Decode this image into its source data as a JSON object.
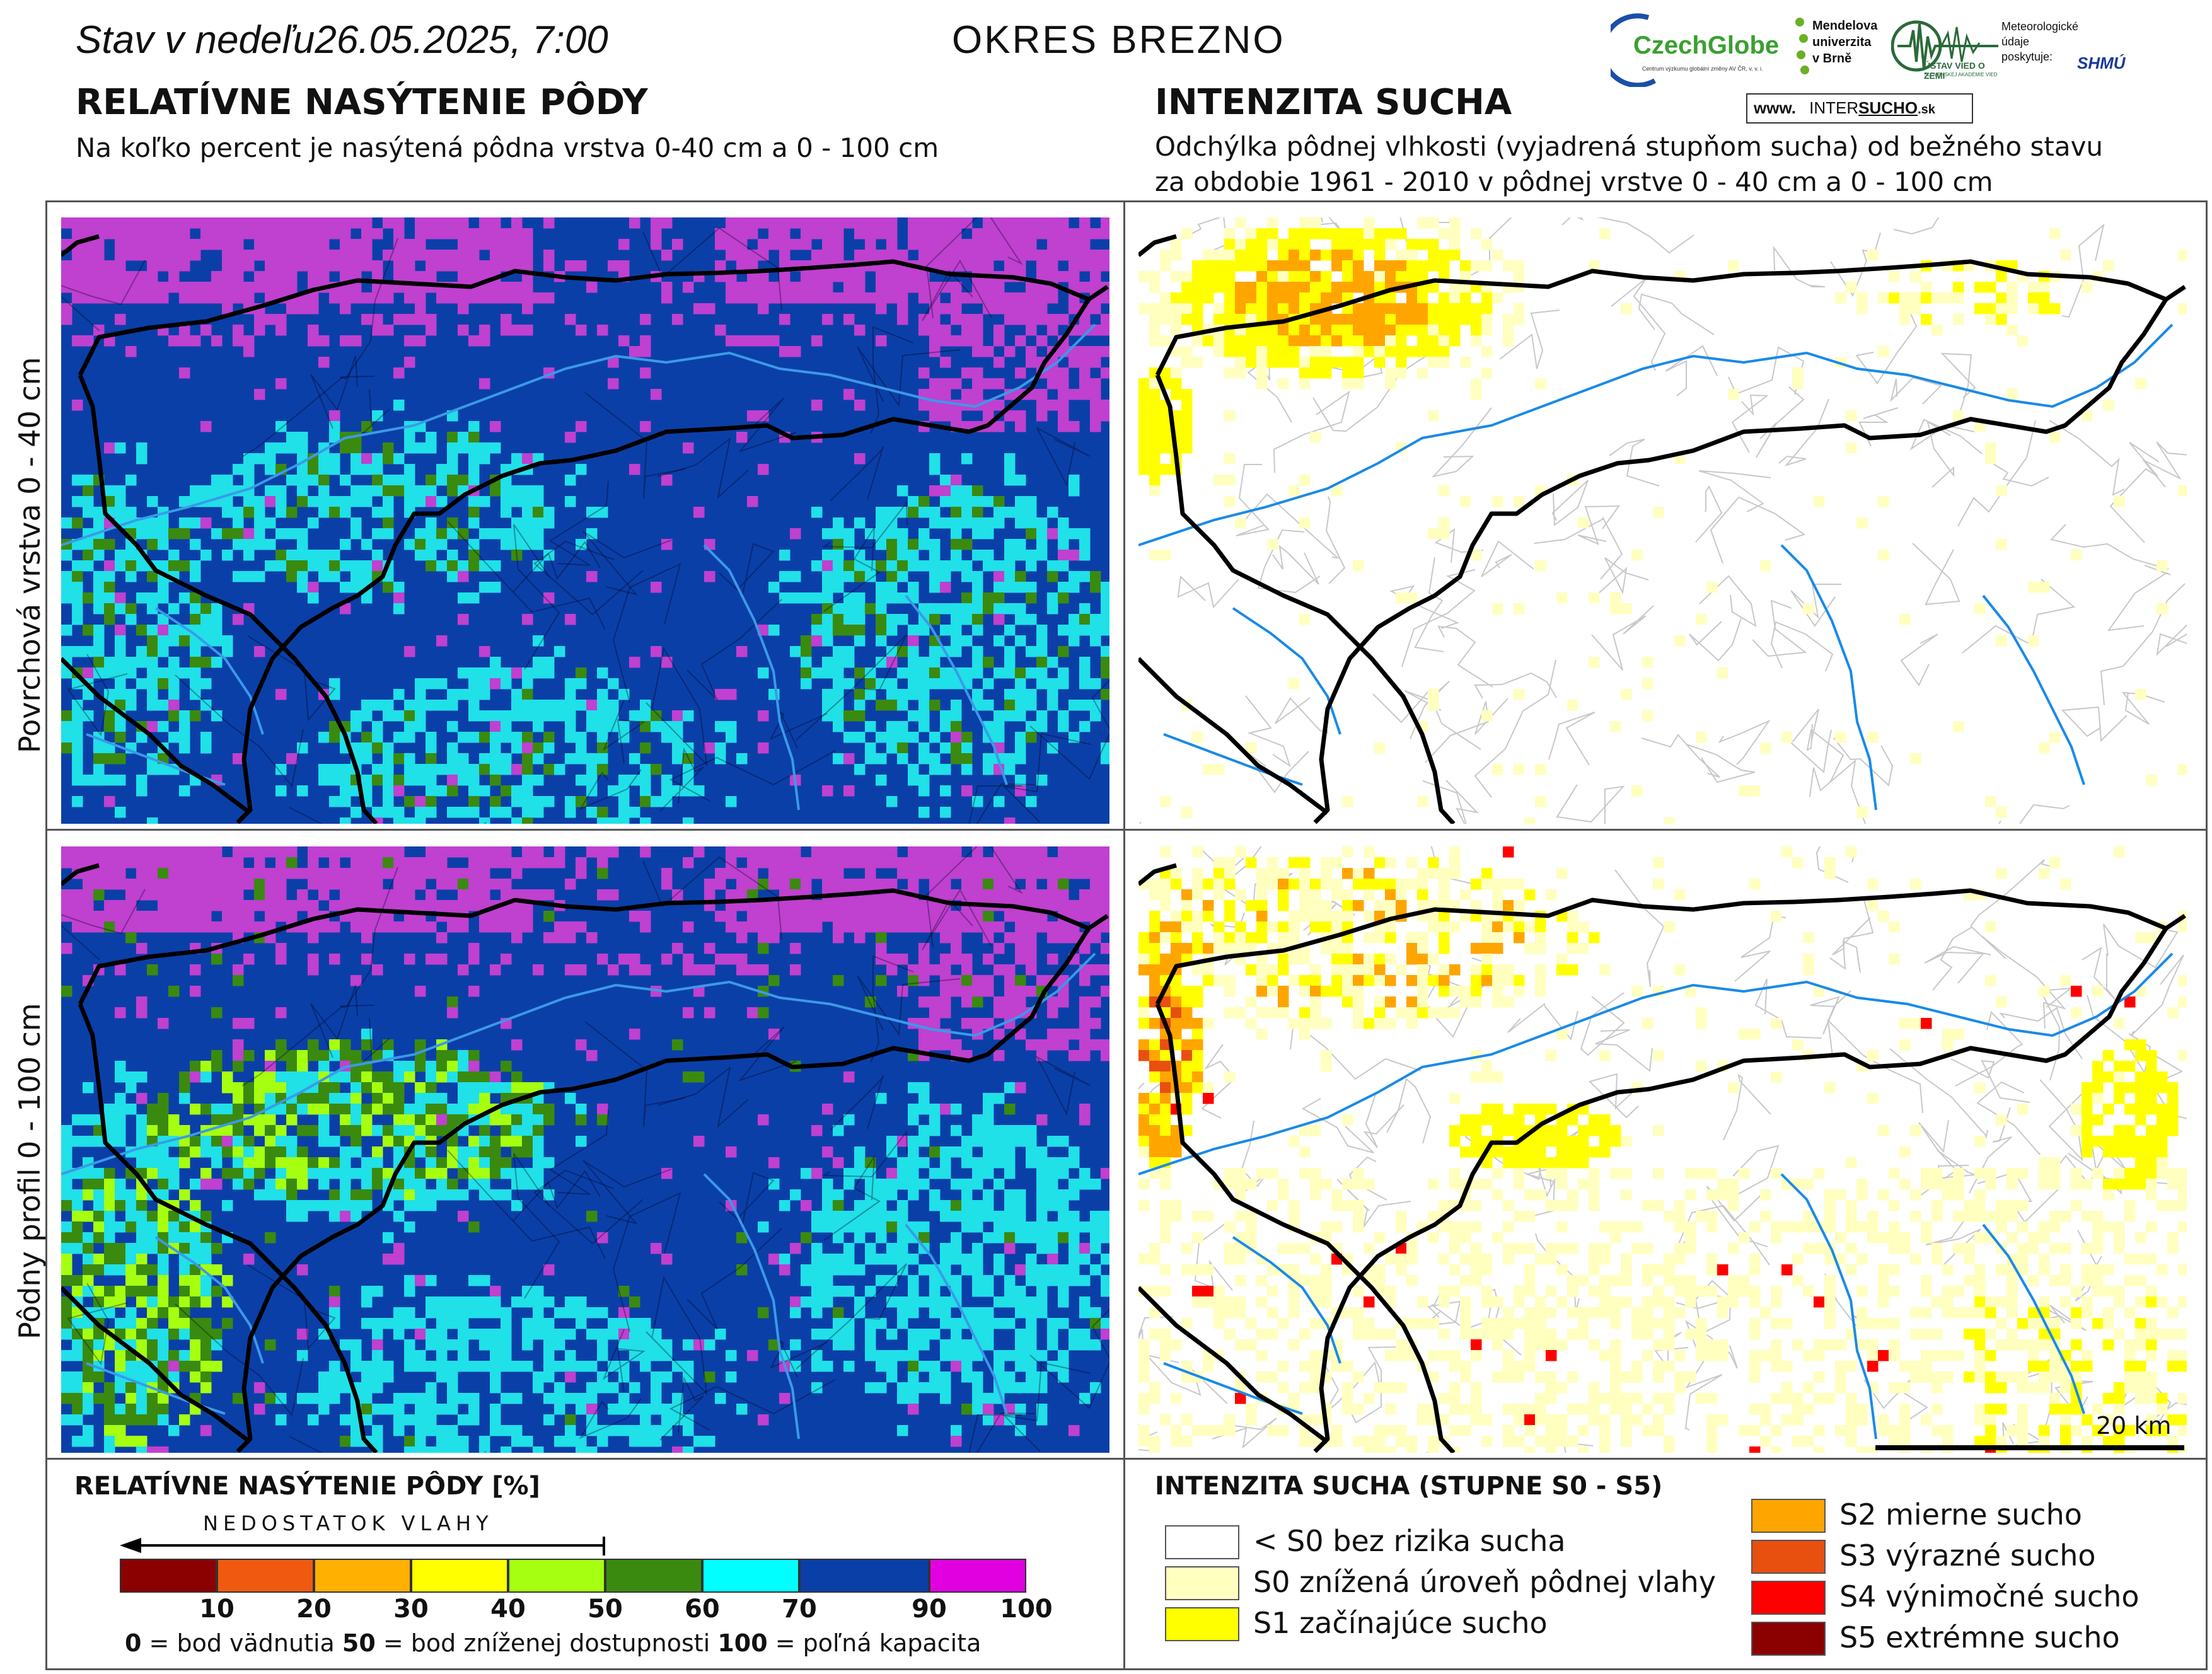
{
  "header": {
    "date_prefix": "Stav v nedeľu",
    "date": "26.05.2025, 7:00",
    "district": "OKRES  BREZNO"
  },
  "left": {
    "title": "RELATÍVNE NASÝTENIE PÔDY",
    "subtitle": "Na koľko percent je nasýtená pôdna vrstva 0-40 cm a 0 - 100 cm"
  },
  "right": {
    "title": "INTENZITA SUCHA",
    "subtitle_line1": "Odchýlka pôdnej vlhkosti (vyjadrená stupňom sucha) od bežného stavu",
    "subtitle_line2": "za obdobie 1961 - 2010 v pôdnej vrstve 0 - 40 cm a 0 - 100 cm"
  },
  "rows": {
    "top": "Povrchová vrstva 0 - 40 cm",
    "bottom": "Pôdny profil 0 - 100 cm"
  },
  "logos": {
    "czechglobe": "CzechGlobe",
    "czechglobe_small": "Centrum výzkumu globální změny AV ČR, v. v. i.",
    "mendelu1": "Mendelova",
    "mendelu2": "univerzita",
    "mendelu3": "v Brně",
    "uvz": "ÚSTAV VIED O ZEMI",
    "uvz_small": "SLOVENSKEJ AKADÉMIE VIED",
    "meteo1": "Meteorologické",
    "meteo2": "údaje",
    "meteo3": "poskytuje:",
    "shmu": "SHMÚ",
    "web_prefix": "www.",
    "web_inter": "INTER",
    "web_sucho": "SUCHO",
    "web_suffix": ".sk"
  },
  "legend_left": {
    "title": "RELATÍVNE NASÝTENIE PÔDY [%]",
    "arrow_label": "NEDOSTATOK VLAHY",
    "ticks": [
      "10",
      "20",
      "30",
      "40",
      "50",
      "60",
      "70",
      "90",
      "100"
    ],
    "colors": [
      "#8b0000",
      "#f05a10",
      "#ffb000",
      "#ffff00",
      "#a6ff10",
      "#3a8a10",
      "#00ffff",
      "#0b3fa8",
      "#e000e0"
    ],
    "note_0": "0",
    "note_0_text": " = bod vädnutia  ",
    "note_50": "50",
    "note_50_text": " = bod zníženej dostupnosti  ",
    "note_100": "100",
    "note_100_text": " = poľná kapacita"
  },
  "legend_right": {
    "title": "INTENZITA SUCHA (STUPNE S0 - S5)",
    "items": [
      {
        "label": "< S0 bez rizika sucha",
        "color": "#ffffff"
      },
      {
        "label": "S0 znížená úroveň pôdnej vlahy",
        "color": "#ffffc0"
      },
      {
        "label": "S1 začínajúce sucho",
        "color": "#ffff00"
      },
      {
        "label": "S2 mierne sucho",
        "color": "#ffa500"
      },
      {
        "label": "S3 výrazné sucho",
        "color": "#e85010"
      },
      {
        "label": "S4 výnimočné sucho",
        "color": "#ff0000"
      },
      {
        "label": "S5 extrémne sucho",
        "color": "#8b0000"
      }
    ]
  },
  "scale_label": "20 km",
  "map_colors": {
    "blue": "#0b3fa8",
    "magenta": "#c040d0",
    "cyan": "#20e0e8",
    "green": "#3a8a10",
    "lime": "#a6ff10",
    "river": "#3a9ae8",
    "border": "#000000"
  }
}
